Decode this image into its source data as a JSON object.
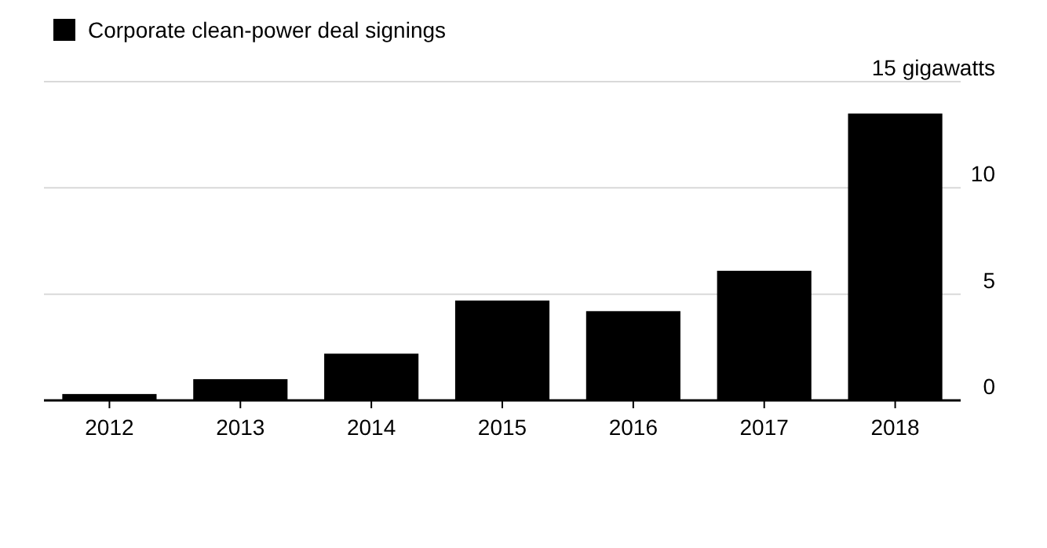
{
  "chart_data": {
    "type": "bar",
    "categories": [
      "2012",
      "2013",
      "2014",
      "2015",
      "2016",
      "2017",
      "2018"
    ],
    "series": [
      {
        "name": "Corporate clean-power deal signings",
        "color": "#000000",
        "values": [
          0.3,
          1.0,
          2.2,
          4.7,
          4.2,
          6.1,
          13.5
        ]
      }
    ],
    "ylim": [
      0,
      15
    ],
    "yticks": [
      0,
      5,
      10,
      {
        "value": 15,
        "label": "15 gigawatts"
      }
    ],
    "grid": "y",
    "legend": "top left"
  }
}
